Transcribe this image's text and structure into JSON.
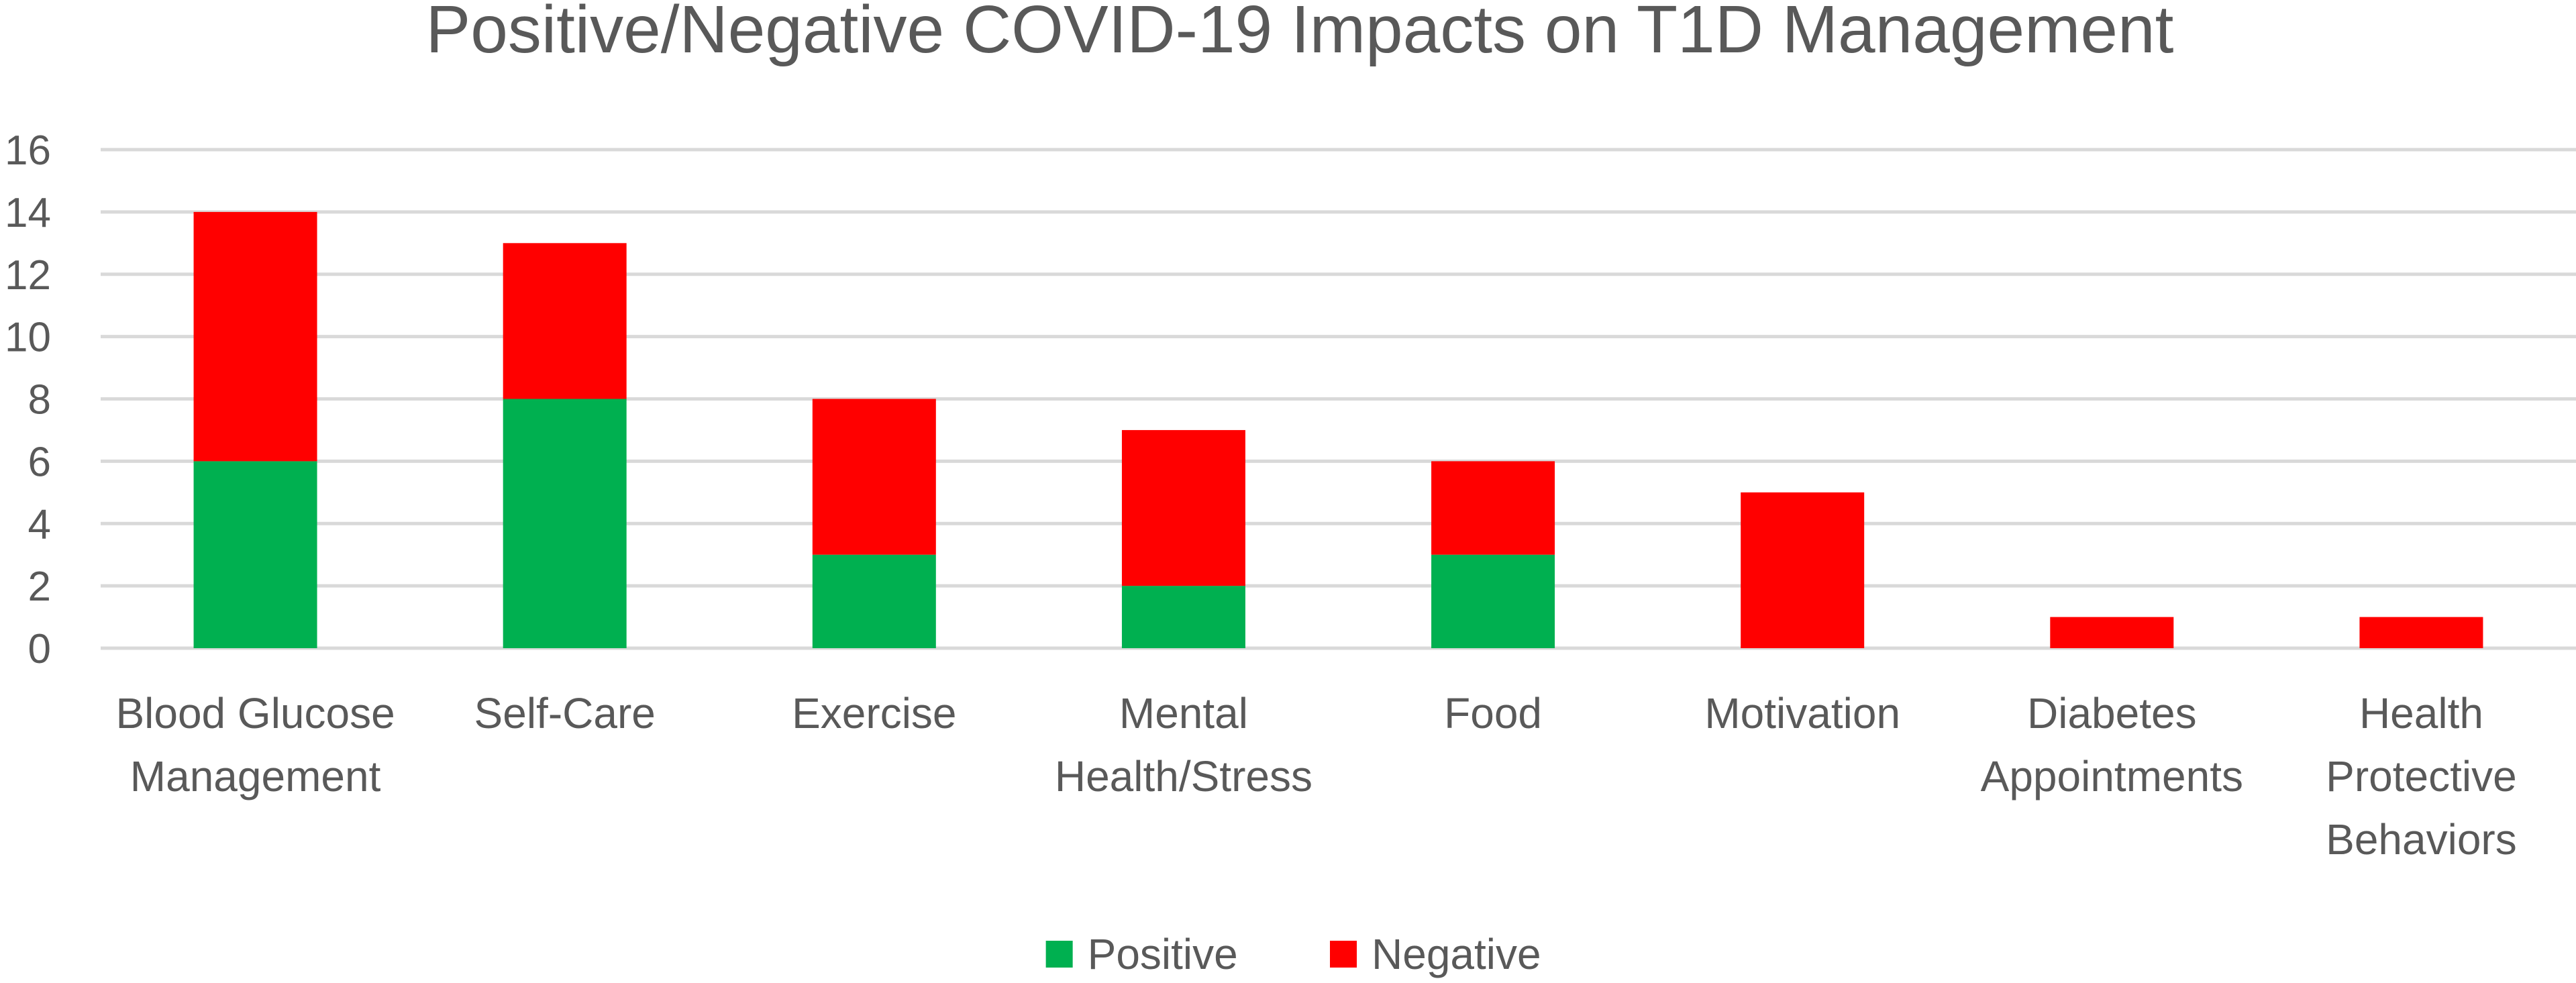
{
  "chart_data": {
    "type": "bar",
    "stacked": true,
    "title": "Positive/Negative COVID-19 Impacts on T1D Management",
    "xlabel": "",
    "ylabel": "",
    "ylim": [
      0,
      16
    ],
    "ytick_step": 2,
    "grid": true,
    "legend_position": "bottom",
    "categories": [
      [
        "Blood Glucose",
        "Management"
      ],
      [
        "Self-Care"
      ],
      [
        "Exercise"
      ],
      [
        "Mental",
        "Health/Stress"
      ],
      [
        "Food"
      ],
      [
        "Motivation"
      ],
      [
        "Diabetes",
        "Appointments"
      ],
      [
        "Health",
        "Protective",
        "Behaviors"
      ]
    ],
    "series": [
      {
        "name": "Positive",
        "color": "#00b050",
        "values": [
          6,
          8,
          3,
          2,
          3,
          0,
          0,
          0
        ]
      },
      {
        "name": "Negative",
        "color": "#ff0000",
        "values": [
          8,
          5,
          5,
          5,
          3,
          5,
          1,
          1
        ]
      }
    ]
  }
}
